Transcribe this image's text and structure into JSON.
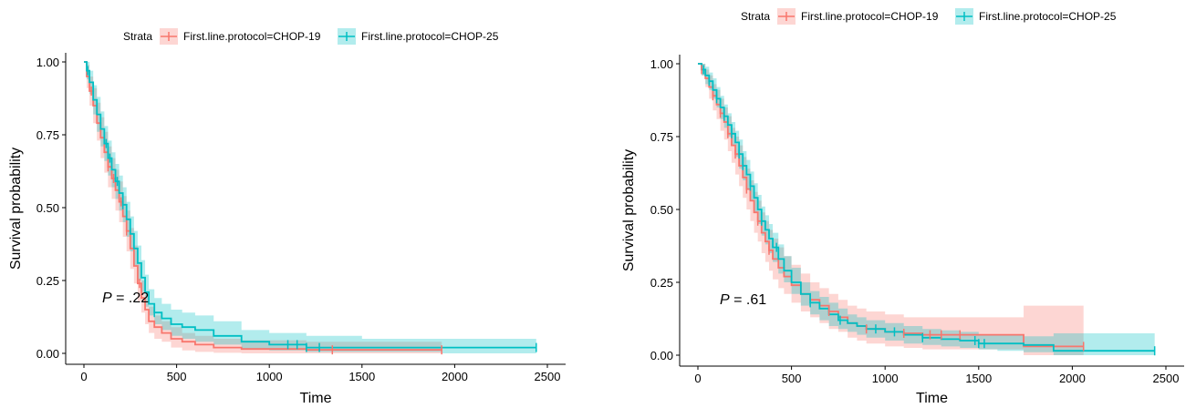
{
  "colors": {
    "chop19": "#F8766D",
    "chop25": "#00BFC4"
  },
  "chart_data": [
    {
      "type": "line",
      "subtype": "kaplan-meier",
      "xlabel": "Time",
      "ylabel": "Survival probability",
      "xlim": [
        0,
        2500
      ],
      "ylim": [
        0,
        1
      ],
      "xticks": [
        "0",
        "500",
        "1000",
        "1500",
        "2000",
        "2500"
      ],
      "yticks": [
        "0.00",
        "0.25",
        "0.50",
        "0.75",
        "1.00"
      ],
      "grid": false,
      "legend": {
        "title": "Strata",
        "position": "top"
      },
      "annotation": {
        "prefix": "P",
        "text": " = .22",
        "x": 100,
        "y": 0.19
      },
      "series": [
        {
          "name": "First.line.protocol=CHOP-19",
          "color": "#F8766D",
          "x": [
            0,
            15,
            30,
            50,
            70,
            90,
            110,
            130,
            150,
            170,
            190,
            210,
            230,
            250,
            270,
            290,
            310,
            330,
            350,
            380,
            420,
            470,
            530,
            600,
            700,
            850,
            1000,
            1200,
            1500,
            1930
          ],
          "y": [
            1.0,
            0.95,
            0.9,
            0.85,
            0.79,
            0.74,
            0.69,
            0.64,
            0.6,
            0.56,
            0.52,
            0.47,
            0.42,
            0.36,
            0.3,
            0.24,
            0.19,
            0.15,
            0.11,
            0.09,
            0.07,
            0.05,
            0.04,
            0.03,
            0.02,
            0.015,
            0.015,
            0.012,
            0.012,
            0.012
          ],
          "lower": [
            1.0,
            0.91,
            0.85,
            0.79,
            0.73,
            0.67,
            0.62,
            0.57,
            0.53,
            0.49,
            0.45,
            0.4,
            0.35,
            0.29,
            0.24,
            0.18,
            0.14,
            0.1,
            0.07,
            0.05,
            0.04,
            0.02,
            0.01,
            0.005,
            0.002,
            0.0,
            0.0,
            0.0,
            0.0,
            0.0
          ],
          "upper": [
            1.0,
            0.99,
            0.95,
            0.91,
            0.86,
            0.81,
            0.76,
            0.71,
            0.67,
            0.63,
            0.59,
            0.54,
            0.49,
            0.43,
            0.37,
            0.31,
            0.25,
            0.2,
            0.16,
            0.13,
            0.11,
            0.09,
            0.07,
            0.06,
            0.05,
            0.045,
            0.045,
            0.04,
            0.04,
            0.04
          ],
          "censor_x": [
            40,
            130,
            160,
            200,
            230,
            300,
            1340,
            1930
          ]
        },
        {
          "name": "First.line.protocol=CHOP-25",
          "color": "#00BFC4",
          "x": [
            0,
            15,
            30,
            50,
            70,
            90,
            110,
            130,
            150,
            170,
            190,
            210,
            230,
            250,
            270,
            290,
            310,
            330,
            350,
            380,
            420,
            470,
            530,
            600,
            700,
            850,
            1000,
            1200,
            1500,
            1930,
            2440
          ],
          "y": [
            1.0,
            0.97,
            0.93,
            0.87,
            0.82,
            0.77,
            0.72,
            0.67,
            0.63,
            0.59,
            0.55,
            0.51,
            0.46,
            0.41,
            0.36,
            0.31,
            0.26,
            0.21,
            0.17,
            0.14,
            0.12,
            0.1,
            0.09,
            0.08,
            0.06,
            0.04,
            0.03,
            0.02,
            0.02,
            0.02,
            0.02
          ],
          "lower": [
            1.0,
            0.94,
            0.89,
            0.82,
            0.76,
            0.71,
            0.66,
            0.61,
            0.57,
            0.53,
            0.49,
            0.45,
            0.4,
            0.35,
            0.3,
            0.25,
            0.21,
            0.16,
            0.13,
            0.1,
            0.08,
            0.06,
            0.05,
            0.04,
            0.03,
            0.015,
            0.01,
            0.005,
            0.005,
            0.0,
            0.0
          ],
          "upper": [
            1.0,
            1.0,
            0.97,
            0.92,
            0.88,
            0.83,
            0.78,
            0.73,
            0.69,
            0.65,
            0.61,
            0.57,
            0.52,
            0.47,
            0.42,
            0.37,
            0.32,
            0.27,
            0.22,
            0.19,
            0.17,
            0.15,
            0.14,
            0.13,
            0.11,
            0.08,
            0.07,
            0.06,
            0.05,
            0.05,
            0.05
          ],
          "censor_x": [
            20,
            120,
            140,
            180,
            210,
            380,
            1100,
            1150,
            1200,
            1270,
            2440
          ]
        }
      ]
    },
    {
      "type": "line",
      "subtype": "kaplan-meier",
      "xlabel": "Time",
      "ylabel": "Survival probability",
      "xlim": [
        0,
        2500
      ],
      "ylim": [
        0,
        1
      ],
      "xticks": [
        "0",
        "500",
        "1000",
        "1500",
        "2000",
        "2500"
      ],
      "yticks": [
        "0.00",
        "0.25",
        "0.50",
        "0.75",
        "1.00"
      ],
      "grid": false,
      "legend": {
        "title": "Strata",
        "position": "top"
      },
      "annotation": {
        "prefix": "P",
        "text": " = .61",
        "x": 100,
        "y": 0.19
      },
      "series": [
        {
          "name": "First.line.protocol=CHOP-19",
          "color": "#F8766D",
          "x": [
            0,
            20,
            40,
            60,
            80,
            100,
            120,
            140,
            160,
            180,
            200,
            220,
            240,
            260,
            280,
            300,
            320,
            340,
            360,
            380,
            400,
            430,
            460,
            500,
            550,
            600,
            650,
            700,
            750,
            800,
            850,
            900,
            1000,
            1100,
            1200,
            1300,
            1400,
            1500,
            1600,
            1740,
            2060
          ],
          "y": [
            1.0,
            0.98,
            0.95,
            0.92,
            0.89,
            0.86,
            0.83,
            0.8,
            0.76,
            0.72,
            0.69,
            0.65,
            0.61,
            0.57,
            0.53,
            0.49,
            0.46,
            0.42,
            0.39,
            0.36,
            0.33,
            0.3,
            0.27,
            0.24,
            0.21,
            0.19,
            0.17,
            0.15,
            0.13,
            0.11,
            0.1,
            0.09,
            0.08,
            0.075,
            0.07,
            0.07,
            0.07,
            0.07,
            0.07,
            0.03,
            0.03
          ],
          "lower": [
            1.0,
            0.96,
            0.92,
            0.88,
            0.84,
            0.81,
            0.77,
            0.74,
            0.7,
            0.66,
            0.62,
            0.58,
            0.54,
            0.5,
            0.46,
            0.42,
            0.39,
            0.35,
            0.32,
            0.29,
            0.26,
            0.23,
            0.21,
            0.18,
            0.15,
            0.13,
            0.11,
            0.09,
            0.08,
            0.06,
            0.05,
            0.04,
            0.03,
            0.025,
            0.02,
            0.02,
            0.02,
            0.02,
            0.02,
            0.0,
            0.0
          ],
          "upper": [
            1.0,
            1.0,
            0.98,
            0.96,
            0.93,
            0.91,
            0.88,
            0.85,
            0.82,
            0.78,
            0.75,
            0.72,
            0.68,
            0.64,
            0.6,
            0.56,
            0.53,
            0.49,
            0.46,
            0.43,
            0.4,
            0.37,
            0.34,
            0.31,
            0.28,
            0.25,
            0.23,
            0.21,
            0.19,
            0.17,
            0.16,
            0.15,
            0.14,
            0.13,
            0.13,
            0.13,
            0.13,
            0.13,
            0.13,
            0.17,
            0.17
          ],
          "censor_x": [
            20,
            80,
            120,
            160,
            200,
            260,
            320,
            380,
            700,
            900,
            1100,
            1240,
            1300,
            1400,
            2060
          ]
        },
        {
          "name": "First.line.protocol=CHOP-25",
          "color": "#00BFC4",
          "x": [
            0,
            20,
            40,
            60,
            80,
            100,
            120,
            140,
            160,
            180,
            200,
            220,
            240,
            260,
            280,
            300,
            320,
            340,
            360,
            380,
            400,
            430,
            460,
            500,
            550,
            600,
            650,
            700,
            750,
            800,
            850,
            900,
            1000,
            1100,
            1200,
            1300,
            1400,
            1500,
            1600,
            1740,
            1900,
            2440
          ],
          "y": [
            1.0,
            0.98,
            0.96,
            0.94,
            0.91,
            0.88,
            0.85,
            0.82,
            0.79,
            0.76,
            0.73,
            0.69,
            0.65,
            0.62,
            0.58,
            0.54,
            0.5,
            0.46,
            0.43,
            0.4,
            0.37,
            0.33,
            0.29,
            0.25,
            0.21,
            0.18,
            0.16,
            0.14,
            0.12,
            0.11,
            0.1,
            0.09,
            0.08,
            0.07,
            0.06,
            0.055,
            0.05,
            0.04,
            0.04,
            0.035,
            0.015,
            0.015
          ],
          "lower": [
            1.0,
            0.96,
            0.93,
            0.91,
            0.88,
            0.85,
            0.81,
            0.78,
            0.75,
            0.72,
            0.68,
            0.64,
            0.6,
            0.57,
            0.53,
            0.49,
            0.45,
            0.41,
            0.38,
            0.35,
            0.32,
            0.28,
            0.25,
            0.21,
            0.17,
            0.14,
            0.12,
            0.1,
            0.09,
            0.08,
            0.07,
            0.06,
            0.05,
            0.04,
            0.035,
            0.03,
            0.025,
            0.02,
            0.015,
            0.01,
            0.0,
            0.0
          ],
          "upper": [
            1.0,
            1.0,
            0.99,
            0.97,
            0.95,
            0.92,
            0.89,
            0.86,
            0.83,
            0.8,
            0.77,
            0.74,
            0.7,
            0.67,
            0.63,
            0.59,
            0.55,
            0.51,
            0.48,
            0.45,
            0.42,
            0.38,
            0.34,
            0.3,
            0.25,
            0.22,
            0.2,
            0.18,
            0.16,
            0.14,
            0.13,
            0.12,
            0.11,
            0.1,
            0.09,
            0.085,
            0.08,
            0.07,
            0.07,
            0.065,
            0.075,
            0.075
          ],
          "censor_x": [
            30,
            60,
            100,
            140,
            180,
            220,
            240,
            280,
            340,
            420,
            600,
            760,
            950,
            1050,
            1200,
            1480,
            1500,
            1530,
            2440
          ]
        }
      ]
    }
  ]
}
